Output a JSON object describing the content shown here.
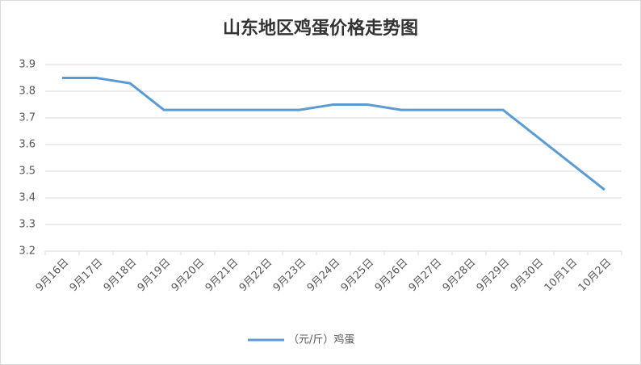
{
  "chart_data": {
    "type": "line",
    "title": "山东地区鸡蛋价格走势图",
    "categories": [
      "9月16日",
      "9月17日",
      "9月18日",
      "9月19日",
      "9月20日",
      "9月21日",
      "9月22日",
      "9月23日",
      "9月24日",
      "9月25日",
      "9月26日",
      "9月27日",
      "9月28日",
      "9月29日",
      "9月30日",
      "10月1日",
      "10月2日"
    ],
    "series": [
      {
        "name": "（元/斤）鸡蛋",
        "color": "#5b9bd5",
        "values": [
          3.85,
          3.85,
          3.83,
          3.73,
          3.73,
          3.73,
          3.73,
          3.73,
          3.75,
          3.75,
          3.73,
          3.73,
          3.73,
          3.73,
          3.63,
          3.53,
          3.43
        ]
      }
    ],
    "ylim": [
      3.2,
      3.9
    ],
    "yticks": [
      3.2,
      3.3,
      3.4,
      3.5,
      3.6,
      3.7,
      3.8,
      3.9
    ],
    "grid": true,
    "legend": "bottom"
  }
}
